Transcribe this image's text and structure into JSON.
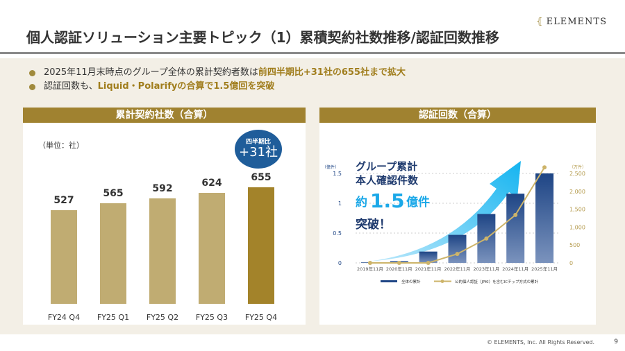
{
  "header": {
    "title": "個人認証ソリューション主要トピック（1）累積契約社数推移/認証回数推移",
    "logo": "ELEMENTS"
  },
  "bullets": [
    {
      "plain": "2025年11月末時点のグループ全体の累計契約者数は",
      "highlight": "前四半期比+31社の655社まで拡大"
    },
    {
      "plain": "認証回数も、",
      "highlight": "Liquid・Polarifyの合算で1.5億回を突破"
    }
  ],
  "left_card": {
    "title": "累計契約社数（合算）",
    "unit": "（単位：社）",
    "badge_small": "四半期比",
    "badge_big": "+31社"
  },
  "right_card": {
    "title": "認証回数（合算）"
  },
  "chart_data": [
    {
      "type": "bar",
      "categories": [
        "FY24 Q4",
        "FY25 Q1",
        "FY25 Q2",
        "FY25 Q3",
        "FY25 Q4"
      ],
      "values": [
        527,
        565,
        592,
        624,
        655
      ],
      "colors": [
        "#c0ac72",
        "#c0ac72",
        "#c0ac72",
        "#c0ac72",
        "#a3832a"
      ],
      "ylabel": "（単位：社）"
    },
    {
      "type": "bar+line",
      "categories": [
        "2019年11月",
        "2020年11月",
        "2021年11月",
        "2022年11月",
        "2023年11月",
        "2024年11月",
        "2025年11月"
      ],
      "series": [
        {
          "name": "全体の累計",
          "type": "bar",
          "axis": "left",
          "values": [
            0.01,
            0.03,
            0.19,
            0.47,
            0.82,
            1.16,
            1.5
          ],
          "color": "#1e4585"
        },
        {
          "name": "公的個人認証（JPKI）を含むICチップ方式の累計",
          "type": "line",
          "axis": "right",
          "values": [
            0,
            0,
            0,
            250,
            680,
            1340,
            2670
          ],
          "color": "#cdb46a"
        }
      ],
      "left_axis": {
        "unit": "（億件）",
        "ticks": [
          "0",
          "0.5",
          "1",
          "1.5"
        ],
        "range": [
          0,
          1.5
        ]
      },
      "right_axis": {
        "unit": "（万件）",
        "ticks": [
          "0",
          "500",
          "1,000",
          "1,500",
          "2,000",
          "2,500"
        ],
        "range": [
          0,
          2500
        ]
      },
      "annotation": {
        "line1": "グループ累計",
        "line2": "本人確認件数",
        "prefix": "約",
        "number": "1.5",
        "suffix": "億件",
        "line4": "突破！"
      },
      "grid": true,
      "legend": "bottom"
    }
  ],
  "footer": {
    "copyright": "© ELEMENTS, Inc. All Rights Reserved.",
    "page": "9"
  }
}
